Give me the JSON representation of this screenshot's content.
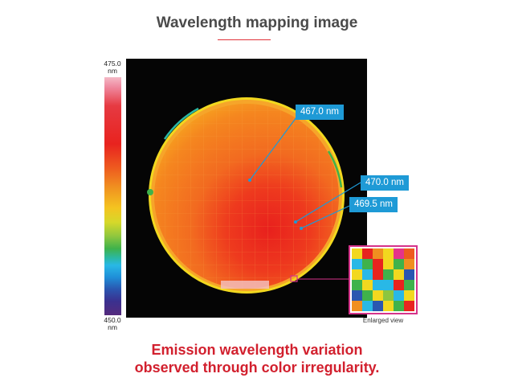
{
  "title": "Wavelength mapping image",
  "scale": {
    "top_value": "475.0",
    "top_unit": "nm",
    "bottom_value": "450.0",
    "bottom_unit": "nm"
  },
  "callouts": [
    {
      "label": "467.0 nm"
    },
    {
      "label": "470.0 nm"
    },
    {
      "label": "469.5 nm"
    }
  ],
  "enlarged": {
    "caption": "Enlarged view",
    "cells": [
      "#f2d81f",
      "#e8231f",
      "#f08f20",
      "#f2d81f",
      "#e5338a",
      "#ee5a1f",
      "#29b8e6",
      "#3fb24b",
      "#e8231f",
      "#f2d81f",
      "#3fb24b",
      "#f08f20",
      "#f2d81f",
      "#29b8e6",
      "#e8231f",
      "#3fb24b",
      "#f2d81f",
      "#2a56b0",
      "#3fb24b",
      "#f2d81f",
      "#29b8e6",
      "#29b8e6",
      "#e8231f",
      "#3fb24b",
      "#2a56b0",
      "#3fb24b",
      "#f2d81f",
      "#8cc63f",
      "#29b8e6",
      "#f2d81f",
      "#f08f20",
      "#29b8e6",
      "#2a56b0",
      "#f2d81f",
      "#3fb24b",
      "#e8231f"
    ]
  },
  "caption_lines": [
    "Emission wavelength variation",
    "observed through color irregularity."
  ],
  "colors": {
    "accent_red": "#d2202e",
    "callout_blue": "#1e9ad6",
    "highlight_magenta": "#d6338a"
  }
}
